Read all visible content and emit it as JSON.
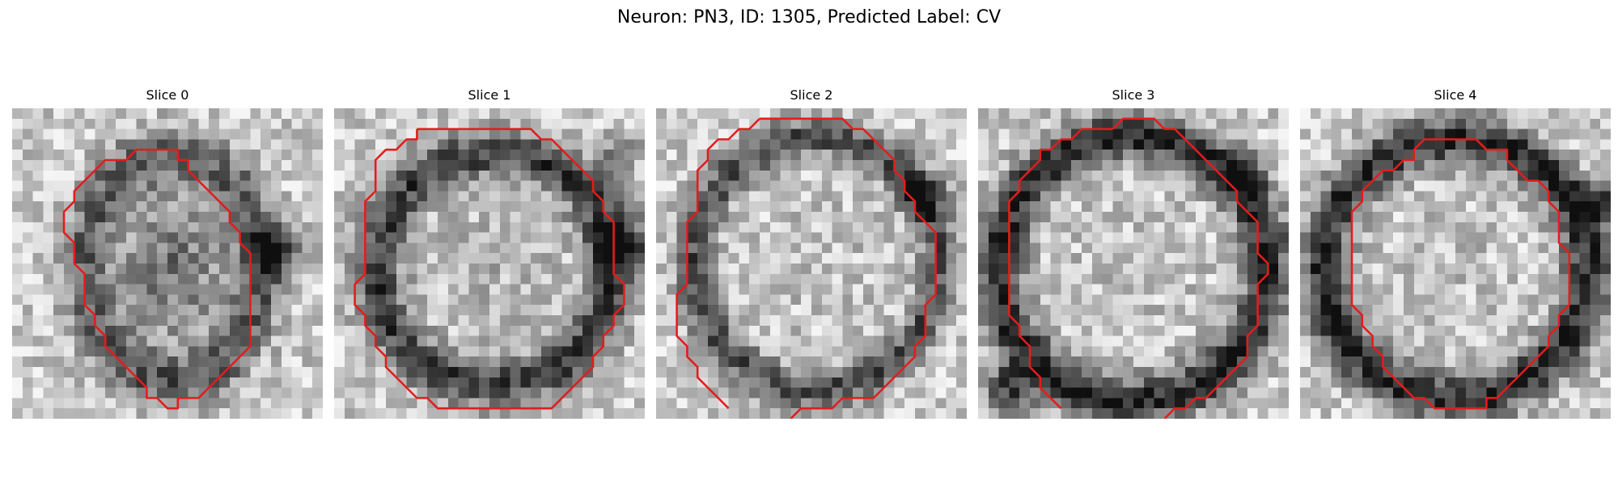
{
  "figure": {
    "title": "Neuron: PN3, ID: 1305, Predicted Label: CV",
    "panels": [
      {
        "title": "Slice 0"
      },
      {
        "title": "Slice 1"
      },
      {
        "title": "Slice 2"
      },
      {
        "title": "Slice 3"
      },
      {
        "title": "Slice 4"
      }
    ]
  },
  "colors": {
    "contour": "#e41c1c",
    "background": "#ffffff"
  }
}
